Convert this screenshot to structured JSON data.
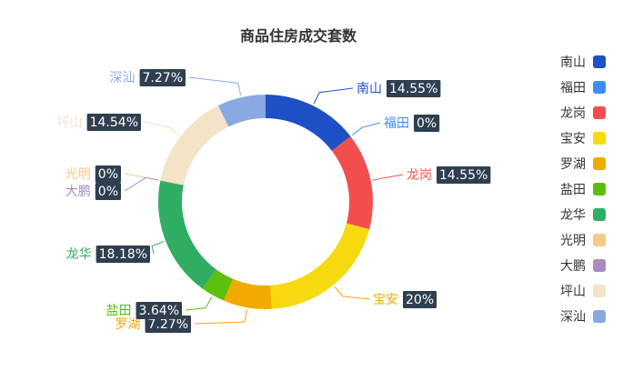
{
  "chart_data": {
    "type": "pie",
    "variant": "donut",
    "title": "商品住房成交套数",
    "slices": [
      {
        "name": "南山",
        "label": "南山",
        "value_label": "14.55%",
        "value": 14.55,
        "color": "#1f4fc4"
      },
      {
        "name": "福田",
        "label": "福田",
        "value_label": "0%",
        "value": 0,
        "color": "#3d8ef0"
      },
      {
        "name": "龙岗",
        "label": "龙岗",
        "value_label": "14.55%",
        "value": 14.55,
        "color": "#f24e4e"
      },
      {
        "name": "宝安",
        "label": "宝安",
        "value_label": "20%",
        "value": 20,
        "color": "#f7d90f"
      },
      {
        "name": "罗湖",
        "label": "罗湖",
        "value_label": "7.27%",
        "value": 7.27,
        "color": "#f2a900"
      },
      {
        "name": "盐田",
        "label": "盐田",
        "value_label": "3.64%",
        "value": 3.64,
        "color": "#5cbf0c"
      },
      {
        "name": "龙华",
        "label": "龙华",
        "value_label": "18.18%",
        "value": 18.18,
        "color": "#2fae63"
      },
      {
        "name": "光明",
        "label": "光明",
        "value_label": "0%",
        "value": 0,
        "color": "#f5c987"
      },
      {
        "name": "大鹏",
        "label": "大鹏",
        "value_label": "0%",
        "value": 0,
        "color": "#a98bc0"
      },
      {
        "name": "坪山",
        "label": "坪山",
        "value_label": "14.54%",
        "value": 14.54,
        "color": "#f4e3c6"
      },
      {
        "name": "深汕",
        "label": "深汕",
        "value_label": "7.27%",
        "value": 7.27,
        "color": "#8aa9e3"
      }
    ],
    "legend_position": "right"
  }
}
